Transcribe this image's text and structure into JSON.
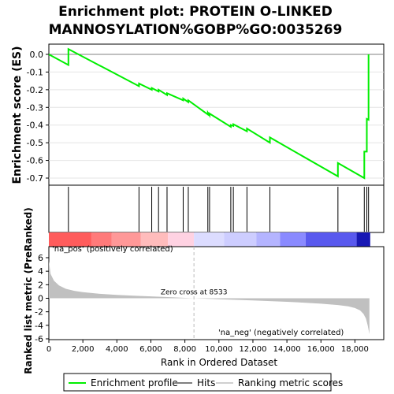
{
  "chart_data": {
    "type": "line",
    "title_line1": "Enrichment plot: PROTEIN O-LINKED",
    "title_line2": "MANNOSYLATION%GOBP%GO:0035269",
    "es_axis_label": "Enrichment score (ES)",
    "es_ylim": [
      -0.74,
      0.04
    ],
    "es_ticks": [
      "0.0",
      "-0.1",
      "-0.2",
      "-0.3",
      "-0.4",
      "-0.5",
      "-0.6",
      "-0.7"
    ],
    "es_tick_values": [
      0.0,
      -0.1,
      -0.2,
      -0.3,
      -0.4,
      -0.5,
      -0.6,
      -0.7
    ],
    "x_range": [
      0,
      19000
    ],
    "x_ticks": [
      "0",
      "2,000",
      "4,000",
      "6,000",
      "8,000",
      "10,000",
      "12,000",
      "14,000",
      "16,000",
      "18,000"
    ],
    "x_tick_values": [
      0,
      2000,
      4000,
      6000,
      8000,
      10000,
      12000,
      14000,
      16000,
      18000
    ],
    "xlabel": "Rank in Ordered Dataset",
    "metric_axis_label": "Ranked list metric (PreRanked)",
    "metric_ylim": [
      -6,
      7
    ],
    "metric_ticks": [
      "6",
      "4",
      "2",
      "0",
      "-2",
      "-4",
      "-6"
    ],
    "metric_tick_values": [
      6,
      4,
      2,
      0,
      -2,
      -4,
      -6
    ],
    "total_genes": 18900,
    "zero_cross": 8533,
    "zero_cross_label": "Zero cross at 8533",
    "pos_label": "'na_pos' (positively correlated)",
    "neg_label": "'na_neg' (negatively correlated)",
    "hits": [
      1150,
      5300,
      6050,
      6450,
      6950,
      7900,
      8200,
      9350,
      9450,
      10700,
      10850,
      11650,
      13000,
      17000,
      18550,
      18700,
      18800
    ],
    "es_points": [
      [
        0,
        0.0
      ],
      [
        1150,
        -0.06
      ],
      [
        1150,
        0.03
      ],
      [
        5300,
        -0.18
      ],
      [
        5300,
        -0.165
      ],
      [
        6050,
        -0.2
      ],
      [
        6050,
        -0.19
      ],
      [
        6450,
        -0.21
      ],
      [
        6450,
        -0.2
      ],
      [
        6950,
        -0.23
      ],
      [
        6950,
        -0.22
      ],
      [
        7900,
        -0.26
      ],
      [
        7900,
        -0.25
      ],
      [
        8200,
        -0.27
      ],
      [
        8200,
        -0.26
      ],
      [
        9350,
        -0.34
      ],
      [
        9350,
        -0.33
      ],
      [
        9450,
        -0.345
      ],
      [
        9450,
        -0.335
      ],
      [
        10700,
        -0.41
      ],
      [
        10700,
        -0.4
      ],
      [
        10850,
        -0.405
      ],
      [
        10850,
        -0.395
      ],
      [
        11650,
        -0.435
      ],
      [
        11650,
        -0.42
      ],
      [
        13000,
        -0.5
      ],
      [
        13000,
        -0.47
      ],
      [
        17000,
        -0.69
      ],
      [
        17000,
        -0.615
      ],
      [
        18550,
        -0.7
      ],
      [
        18550,
        -0.55
      ],
      [
        18700,
        -0.55
      ],
      [
        18700,
        -0.365
      ],
      [
        18800,
        -0.37
      ],
      [
        18800,
        0.0
      ]
    ],
    "metric_curve": [
      [
        0,
        5.5
      ],
      [
        100,
        3.6
      ],
      [
        300,
        2.6
      ],
      [
        600,
        1.9
      ],
      [
        1000,
        1.4
      ],
      [
        1500,
        1.1
      ],
      [
        2000,
        0.9
      ],
      [
        3000,
        0.65
      ],
      [
        4000,
        0.5
      ],
      [
        5000,
        0.38
      ],
      [
        6000,
        0.28
      ],
      [
        7000,
        0.17
      ],
      [
        8000,
        0.06
      ],
      [
        8533,
        0.0
      ],
      [
        9000,
        -0.05
      ],
      [
        10000,
        -0.14
      ],
      [
        11000,
        -0.23
      ],
      [
        12000,
        -0.32
      ],
      [
        13000,
        -0.42
      ],
      [
        14000,
        -0.52
      ],
      [
        15000,
        -0.65
      ],
      [
        16000,
        -0.8
      ],
      [
        17000,
        -1.0
      ],
      [
        17600,
        -1.2
      ],
      [
        18000,
        -1.45
      ],
      [
        18300,
        -1.8
      ],
      [
        18500,
        -2.3
      ],
      [
        18650,
        -3.0
      ],
      [
        18750,
        -4.0
      ],
      [
        18850,
        -5.3
      ]
    ],
    "colorbar": [
      {
        "end": 2500,
        "color": "#ff5c5c"
      },
      {
        "end": 3700,
        "color": "#ff7a7a"
      },
      {
        "end": 5400,
        "color": "#ff9898"
      },
      {
        "end": 7000,
        "color": "#ffbcbc"
      },
      {
        "end": 8533,
        "color": "#ffd2e2"
      },
      {
        "end": 10300,
        "color": "#dcdcff"
      },
      {
        "end": 12200,
        "color": "#cdcdff"
      },
      {
        "end": 13600,
        "color": "#b4b4ff"
      },
      {
        "end": 15100,
        "color": "#8a8aff"
      },
      {
        "end": 18100,
        "color": "#5959ee"
      },
      {
        "end": 18900,
        "color": "#1818b4"
      }
    ],
    "colors": {
      "es_line": "#00ee00",
      "hits": "#000000",
      "metric_fill": "#c0c0c0",
      "zero_line": "#bbbbbb",
      "pos_text": "#d83030",
      "neg_text": "#3030cc",
      "frame": "#000000"
    },
    "legend": [
      {
        "label": "Enrichment profile",
        "color": "#00ee00"
      },
      {
        "label": "Hits",
        "color": "#808080"
      },
      {
        "label": "Ranking metric scores",
        "color": "#d0d0d0"
      }
    ]
  }
}
